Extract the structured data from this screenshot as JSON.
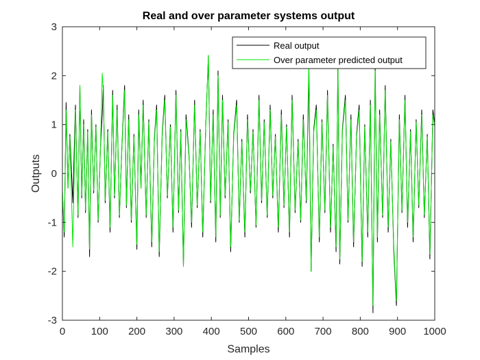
{
  "chart_data": {
    "type": "line",
    "title": "Real and over parameter systems output",
    "xlabel": "Samples",
    "ylabel": "Outputs",
    "xlim": [
      0,
      1000
    ],
    "ylim": [
      -3,
      3
    ],
    "x_ticks": [
      "0",
      "100",
      "200",
      "300",
      "400",
      "500",
      "600",
      "700",
      "800",
      "900",
      "1000"
    ],
    "y_ticks": [
      "3",
      "2",
      "1",
      "0",
      "-1",
      "-2",
      "-3"
    ],
    "grid": false,
    "legend_position": "top-right",
    "series": [
      {
        "name": "Real output",
        "color": "#000000",
        "x": [
          0,
          5,
          10,
          15,
          20,
          28,
          35,
          42,
          47,
          52,
          57,
          62,
          68,
          73,
          78,
          84,
          90,
          96,
          102,
          107,
          110,
          115,
          122,
          128,
          135,
          140,
          147,
          153,
          160,
          167,
          172,
          178,
          185,
          192,
          200,
          205,
          211,
          217,
          225,
          232,
          240,
          247,
          253,
          260,
          268,
          275,
          282,
          290,
          297,
          305,
          312,
          318,
          325,
          332,
          340,
          347,
          355,
          362,
          370,
          377,
          385,
          392,
          398,
          405,
          412,
          418,
          424,
          430,
          437,
          445,
          452,
          460,
          468,
          475,
          482,
          490,
          497,
          505,
          512,
          520,
          528,
          535,
          542,
          550,
          558,
          565,
          572,
          580,
          588,
          595,
          602,
          610,
          617,
          625,
          633,
          640,
          647,
          655,
          662,
          668,
          675,
          682,
          690,
          697,
          705,
          712,
          720,
          727,
          735,
          740,
          745,
          752,
          760,
          767,
          775,
          782,
          790,
          797,
          805,
          812,
          820,
          827,
          834,
          840,
          846,
          852,
          860,
          867,
          875,
          882,
          890,
          897,
          905,
          912,
          920,
          927,
          935,
          942,
          950,
          957,
          965,
          972,
          980,
          987,
          995,
          1000
        ],
        "values": [
          -0.4,
          -1.3,
          1.45,
          -0.3,
          0.8,
          -0.6,
          1.4,
          -0.9,
          1.8,
          -0.5,
          1.1,
          -0.8,
          0.9,
          -1.7,
          1.3,
          -0.4,
          1.0,
          -1.0,
          0.5,
          1.2,
          1.8,
          -0.6,
          0.9,
          -1.2,
          1.7,
          -0.5,
          1.4,
          -0.9,
          0.6,
          1.8,
          -0.7,
          1.2,
          -1.0,
          0.8,
          -1.55,
          1.3,
          -0.3,
          1.5,
          -0.9,
          1.1,
          -1.5,
          0.7,
          1.4,
          -1.7,
          0.8,
          1.6,
          -0.5,
          1.0,
          -1.2,
          1.7,
          -0.8,
          0.9,
          -1.9,
          1.2,
          0.4,
          -1.1,
          1.5,
          -0.7,
          0.9,
          -1.3,
          1.0,
          2.4,
          -0.6,
          1.3,
          -1.4,
          2.1,
          -0.9,
          1.6,
          -0.5,
          1.1,
          -1.6,
          0.8,
          1.5,
          -1.0,
          0.7,
          -1.3,
          1.2,
          -0.4,
          0.9,
          -1.1,
          1.6,
          -0.6,
          1.1,
          -0.9,
          1.4,
          -0.5,
          0.8,
          -1.2,
          1.3,
          -0.7,
          1.0,
          -1.3,
          1.6,
          -0.8,
          0.7,
          -1.0,
          1.2,
          -0.6,
          2.05,
          -2.0,
          0.9,
          1.4,
          -1.4,
          1.1,
          -0.8,
          1.7,
          -1.2,
          0.6,
          -1.6,
          2.3,
          -1.85,
          0.9,
          1.6,
          -1.0,
          1.2,
          -1.5,
          0.8,
          1.4,
          -1.9,
          1.0,
          -1.3,
          1.5,
          -2.85,
          2.2,
          -1.4,
          1.3,
          -0.9,
          1.8,
          -1.2,
          0.7,
          -1.6,
          -2.7,
          1.2,
          -0.8,
          1.6,
          -1.1,
          0.9,
          -1.4,
          1.1,
          -0.7,
          1.3,
          -0.9,
          0.8,
          -1.75,
          1.3,
          1.0
        ]
      },
      {
        "name": "Over parameter predicted output",
        "color": "#00e600",
        "x": [
          0,
          5,
          10,
          15,
          20,
          28,
          35,
          42,
          47,
          52,
          57,
          62,
          68,
          73,
          78,
          84,
          90,
          96,
          102,
          107,
          110,
          115,
          122,
          128,
          135,
          140,
          147,
          153,
          160,
          167,
          172,
          178,
          185,
          192,
          200,
          205,
          211,
          217,
          225,
          232,
          240,
          247,
          253,
          260,
          268,
          275,
          282,
          290,
          297,
          305,
          312,
          318,
          325,
          332,
          340,
          347,
          355,
          362,
          370,
          377,
          385,
          392,
          398,
          405,
          412,
          418,
          424,
          430,
          437,
          445,
          452,
          460,
          468,
          475,
          482,
          490,
          497,
          505,
          512,
          520,
          528,
          535,
          542,
          550,
          558,
          565,
          572,
          580,
          588,
          595,
          602,
          610,
          617,
          625,
          633,
          640,
          647,
          655,
          662,
          668,
          675,
          682,
          690,
          697,
          705,
          712,
          720,
          727,
          735,
          740,
          745,
          752,
          760,
          767,
          775,
          782,
          790,
          797,
          805,
          812,
          820,
          827,
          834,
          840,
          846,
          852,
          860,
          867,
          875,
          882,
          890,
          897,
          905,
          912,
          920,
          927,
          935,
          942,
          950,
          957,
          965,
          972,
          980,
          987,
          995,
          1000
        ],
        "values": [
          -0.35,
          -1.2,
          1.3,
          -0.3,
          0.75,
          -1.5,
          1.3,
          -0.85,
          1.8,
          -0.45,
          1.0,
          -0.75,
          0.85,
          -1.55,
          1.2,
          -0.35,
          0.95,
          -0.95,
          0.45,
          2.05,
          1.7,
          -0.55,
          0.85,
          -1.1,
          1.6,
          -0.45,
          1.3,
          -0.85,
          0.55,
          1.7,
          -0.65,
          1.1,
          -0.95,
          0.75,
          -1.45,
          1.2,
          -0.3,
          1.4,
          -0.85,
          1.05,
          -1.4,
          0.65,
          1.3,
          -1.6,
          0.75,
          1.5,
          -0.45,
          0.95,
          -1.1,
          1.6,
          -0.75,
          0.85,
          -1.9,
          1.1,
          0.35,
          -1.0,
          1.4,
          -0.65,
          0.85,
          -1.2,
          0.95,
          2.42,
          -0.55,
          1.2,
          -1.3,
          2.0,
          -0.85,
          1.5,
          -0.45,
          1.05,
          -1.5,
          0.75,
          1.4,
          -0.95,
          0.65,
          -1.2,
          1.1,
          -0.35,
          0.85,
          -1.05,
          1.5,
          -0.55,
          1.05,
          -0.85,
          1.3,
          -0.45,
          0.75,
          -1.1,
          1.2,
          -0.65,
          0.95,
          -1.2,
          1.5,
          -0.75,
          0.65,
          -0.95,
          1.1,
          -0.55,
          2.35,
          -2.0,
          0.85,
          1.3,
          -1.3,
          1.05,
          -0.75,
          1.6,
          -1.1,
          0.55,
          -1.5,
          2.2,
          -1.75,
          0.85,
          1.5,
          -0.95,
          1.1,
          -1.4,
          0.75,
          1.3,
          -1.8,
          0.95,
          -1.2,
          1.4,
          -2.7,
          2.1,
          -1.3,
          1.2,
          -0.85,
          1.7,
          -1.1,
          0.65,
          -1.5,
          -2.6,
          1.1,
          -0.75,
          1.5,
          -1.0,
          0.85,
          -1.3,
          1.05,
          -0.65,
          1.2,
          -0.85,
          0.75,
          -1.65,
          1.2,
          0.95
        ]
      }
    ]
  }
}
